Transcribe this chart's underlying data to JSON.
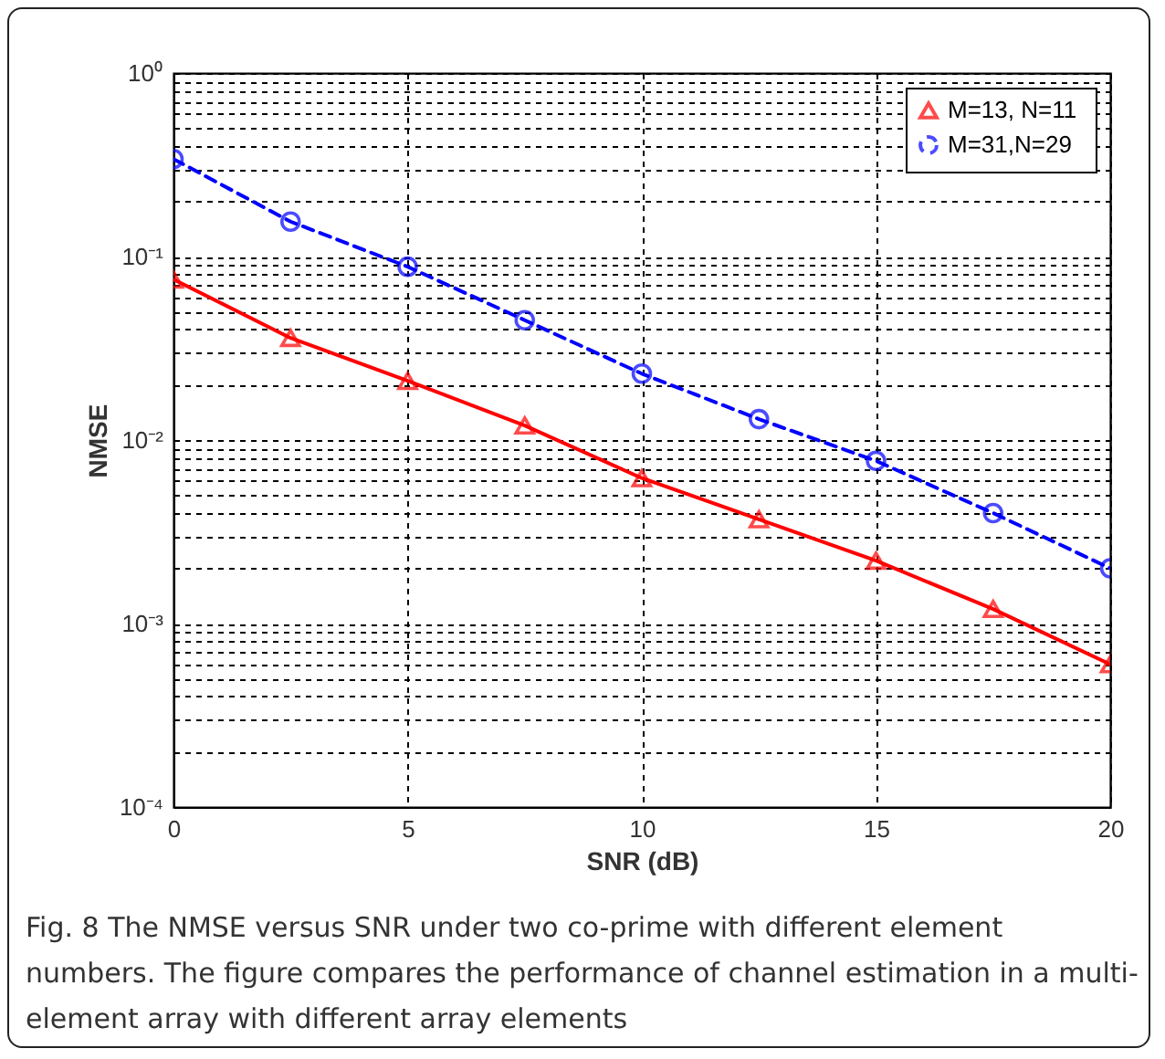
{
  "chart_data": {
    "type": "line",
    "xlabel": "SNR (dB)",
    "ylabel": "NMSE",
    "log": "y",
    "grid": true,
    "legend": "top right",
    "annotations": [
      "Fig. 8 The NMSE versus SNR under two co-prime with different element numbers. The figure compares the performance of channel estimation in a multi-element array with different array elements"
    ],
    "xlim": [
      0,
      20
    ],
    "xticks": [
      0,
      5,
      10,
      15,
      20
    ],
    "ylim": [
      0.0001,
      1
    ],
    "yticks": [
      {
        "value": 0.0001,
        "label": "10⁻⁴"
      },
      {
        "value": 0.0002,
        "label": null
      },
      {
        "value": 0.0003,
        "label": null
      },
      {
        "value": 0.0004,
        "label": null
      },
      {
        "value": 0.0005,
        "label": null
      },
      {
        "value": 0.0006,
        "label": null
      },
      {
        "value": 0.0007,
        "label": null
      },
      {
        "value": 0.0008,
        "label": null
      },
      {
        "value": 0.0009,
        "label": null
      },
      {
        "value": 0.001,
        "label": "10⁻³"
      },
      {
        "value": 0.002,
        "label": null
      },
      {
        "value": 0.003,
        "label": null
      },
      {
        "value": 0.004,
        "label": null
      },
      {
        "value": 0.005,
        "label": null
      },
      {
        "value": 0.006,
        "label": null
      },
      {
        "value": 0.007,
        "label": null
      },
      {
        "value": 0.008,
        "label": null
      },
      {
        "value": 0.009,
        "label": null
      },
      {
        "value": 0.01,
        "label": "10⁻²"
      },
      {
        "value": 0.02,
        "label": null
      },
      {
        "value": 0.03,
        "label": null
      },
      {
        "value": 0.04,
        "label": null
      },
      {
        "value": 0.05,
        "label": null
      },
      {
        "value": 0.06,
        "label": null
      },
      {
        "value": 0.07,
        "label": null
      },
      {
        "value": 0.08,
        "label": null
      },
      {
        "value": 0.09,
        "label": null
      },
      {
        "value": 0.1,
        "label": "10⁻¹"
      },
      {
        "value": 0.2,
        "label": null
      },
      {
        "value": 0.3,
        "label": null
      },
      {
        "value": 0.4,
        "label": null
      },
      {
        "value": 0.5,
        "label": null
      },
      {
        "value": 0.6,
        "label": null
      },
      {
        "value": 0.7,
        "label": null
      },
      {
        "value": 0.8,
        "label": null
      },
      {
        "value": 0.9,
        "label": null
      },
      {
        "value": 1,
        "label": "10⁰"
      }
    ],
    "x": [
      0,
      2.5,
      5,
      7.5,
      10,
      12.5,
      15,
      17.5,
      20
    ],
    "series": [
      {
        "name": "M=13,  N=11",
        "color": "#ff0000",
        "marker": "triangle",
        "line_style": "solid",
        "values": [
          0.075,
          0.036,
          0.021,
          0.012,
          0.0062,
          0.0037,
          0.0022,
          0.0012,
          0.0006
        ]
      },
      {
        "name": "M=31,N=29",
        "color": "#0000ff",
        "marker": "circle",
        "line_style": "dashed",
        "values": [
          0.34,
          0.155,
          0.088,
          0.045,
          0.023,
          0.013,
          0.0077,
          0.004,
          0.002
        ]
      }
    ]
  }
}
